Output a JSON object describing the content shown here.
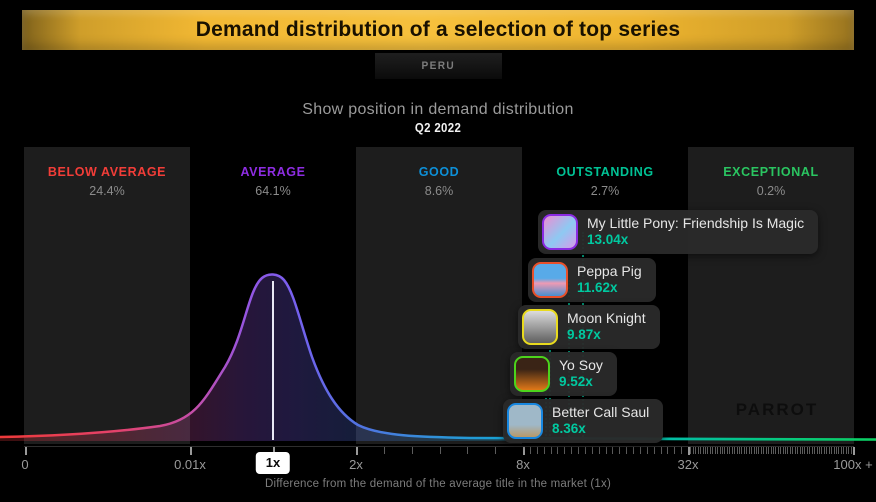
{
  "header": {
    "title": "Demand distribution of a selection of top series",
    "region": "PERU"
  },
  "subtitle": "Show position in demand distribution",
  "period": "Q2 2022",
  "watermark": "PARROT",
  "chart_data": {
    "type": "area",
    "title": "Show position in demand distribution",
    "subtitle": "Q2 2022",
    "market": "PERU",
    "x_axis": {
      "label": "Difference from the demand of the average title in the market (1x)",
      "ticks": [
        "0",
        "0.01x",
        "1x",
        "2x",
        "8x",
        "32x",
        "100x +"
      ],
      "highlighted_tick": "1x",
      "scale": "piecewise-log"
    },
    "curve": {
      "shape": "log-normal demand distribution",
      "peak_at": "1x",
      "stroke_colors": [
        "#ef3a3a",
        "#e4426a",
        "#c44ea8",
        "#7a5ff0",
        "#2f92d8",
        "#02b9b2",
        "#0ccf62"
      ]
    },
    "bands": [
      {
        "label": "BELOW AVERAGE",
        "share": "24.4%",
        "share_value": 24.4,
        "color": "#f23d38"
      },
      {
        "label": "AVERAGE",
        "share": "64.1%",
        "share_value": 64.1,
        "color": "#8e2de2"
      },
      {
        "label": "GOOD",
        "share": "8.6%",
        "share_value": 8.6,
        "color": "#0d90d8"
      },
      {
        "label": "OUTSTANDING",
        "share": "2.7%",
        "share_value": 2.7,
        "color": "#00c295"
      },
      {
        "label": "EXCEPTIONAL",
        "share": "0.2%",
        "share_value": 0.2,
        "color": "#2ac561"
      }
    ],
    "series": [
      {
        "name": "My Little Pony: Friendship Is Magic",
        "demand": "13.04x",
        "demand_value": 13.04,
        "border_color": "#8a2be2"
      },
      {
        "name": "Peppa Pig",
        "demand": "11.62x",
        "demand_value": 11.62,
        "border_color": "#e8502a"
      },
      {
        "name": "Moon Knight",
        "demand": "9.87x",
        "demand_value": 9.87,
        "border_color": "#e8da1e"
      },
      {
        "name": "Yo Soy",
        "demand": "9.52x",
        "demand_value": 9.52,
        "border_color": "#4cd41c"
      },
      {
        "name": "Better Call Saul",
        "demand": "8.36x",
        "demand_value": 8.36,
        "border_color": "#1787e0"
      }
    ],
    "value_color": "#00c9a0"
  }
}
